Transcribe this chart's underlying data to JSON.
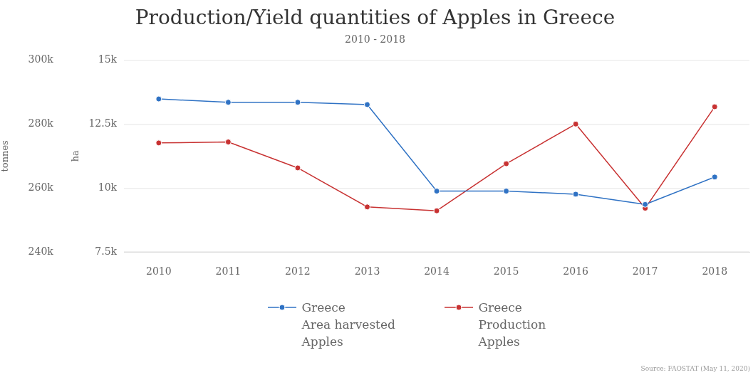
{
  "chart_data": {
    "type": "line",
    "title": "Production/Yield quantities of Apples in Greece",
    "subtitle": "2010 - 2018",
    "categories": [
      "2010",
      "2011",
      "2012",
      "2013",
      "2014",
      "2015",
      "2016",
      "2017",
      "2018"
    ],
    "series": [
      {
        "name": "Greece\nArea harvested\nApples",
        "color": "#2f72c4",
        "axis": "y2",
        "values": [
          13480,
          13350,
          13350,
          13260,
          9880,
          9880,
          9760,
          9360,
          10430
        ]
      },
      {
        "name": "Greece\nProduction\nApples",
        "color": "#c83232",
        "values": [
          274100,
          274400,
          266300,
          254100,
          252900,
          267600,
          280000,
          253700,
          285400
        ]
      }
    ],
    "ylabel": "tonnes",
    "y2label": "ha",
    "y2lim": [
      7500,
      15000
    ],
    "y2ticks": [
      {
        "value": 7500,
        "label": "7.5k"
      },
      {
        "value": 10000,
        "label": "10k"
      },
      {
        "value": 12500,
        "label": "12.5k"
      },
      {
        "value": 15000,
        "label": "15k"
      }
    ],
    "ylim": [
      240000,
      300000
    ],
    "yticks": [
      {
        "value": 240000,
        "label": "240k"
      },
      {
        "value": 260000,
        "label": "260k"
      },
      {
        "value": 280000,
        "label": "280k"
      },
      {
        "value": 300000,
        "label": "300k"
      }
    ],
    "grid": "y",
    "legend": "bottom",
    "marker": "circle",
    "line_style": "solid",
    "annotations": [
      "Source: FAOSTAT (May 11, 2020)"
    ]
  }
}
